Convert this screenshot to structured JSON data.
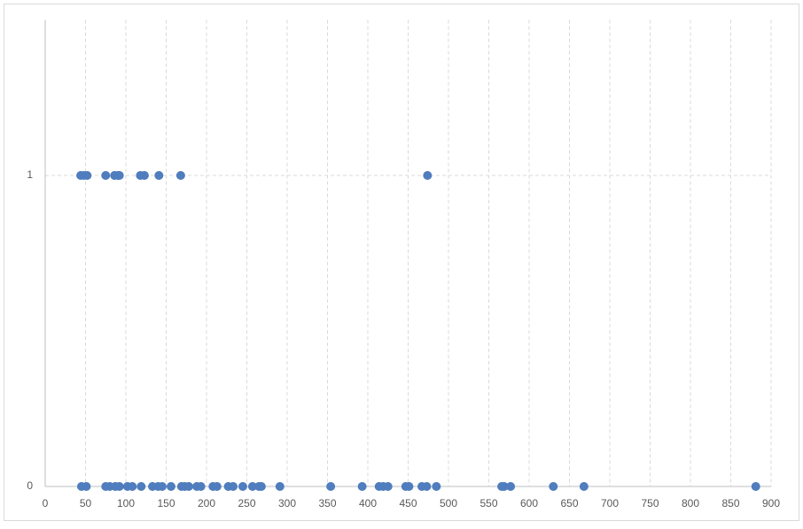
{
  "chart_data": {
    "type": "scatter",
    "x": [
      44,
      48,
      52,
      75,
      86,
      90,
      92,
      118,
      123,
      141,
      168,
      474,
      45,
      51,
      75,
      80,
      87,
      92,
      102,
      108,
      119,
      133,
      140,
      145,
      156,
      169,
      173,
      178,
      188,
      193,
      208,
      213,
      227,
      233,
      245,
      257,
      265,
      268,
      291,
      354,
      393,
      414,
      419,
      425,
      447,
      451,
      467,
      473,
      485,
      566,
      569,
      577,
      630,
      668,
      881
    ],
    "y": [
      1,
      1,
      1,
      1,
      1,
      1,
      1,
      1,
      1,
      1,
      1,
      1,
      0,
      0,
      0,
      0,
      0,
      0,
      0,
      0,
      0,
      0,
      0,
      0,
      0,
      0,
      0,
      0,
      0,
      0,
      0,
      0,
      0,
      0,
      0,
      0,
      0,
      0,
      0,
      0,
      0,
      0,
      0,
      0,
      0,
      0,
      0,
      0,
      0,
      0,
      0,
      0,
      0,
      0,
      0
    ],
    "color": "#4f7dbd",
    "xlim": [
      0,
      900
    ],
    "xticks": [
      0,
      50,
      100,
      150,
      200,
      250,
      300,
      350,
      400,
      450,
      500,
      550,
      600,
      650,
      700,
      750,
      800,
      850,
      900
    ],
    "ylim": [
      0,
      1.5
    ],
    "yticks": [
      0,
      1
    ],
    "grid": true
  }
}
